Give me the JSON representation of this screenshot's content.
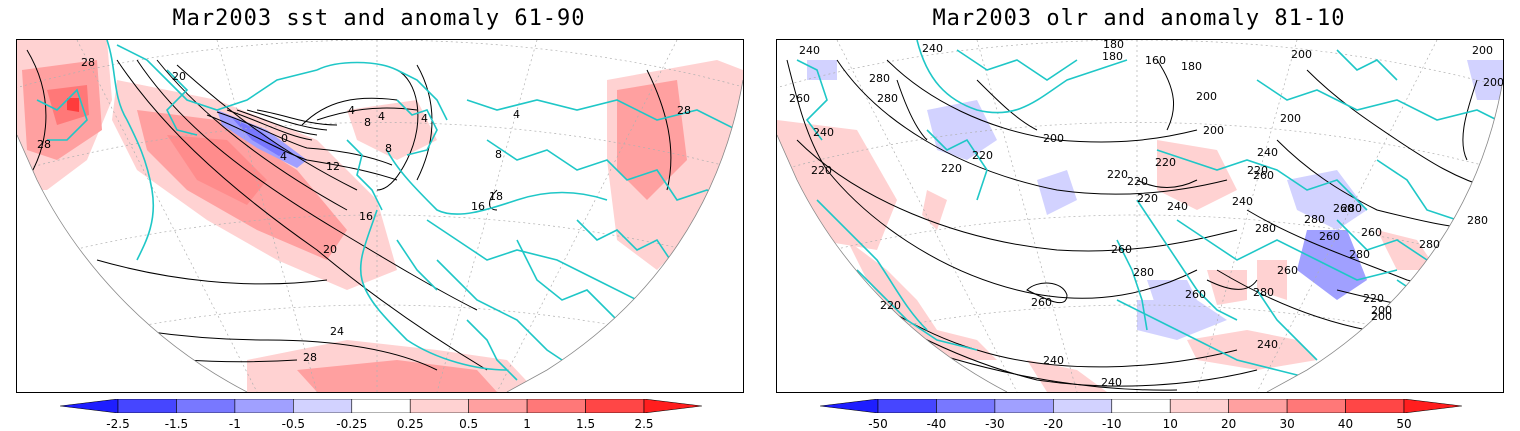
{
  "panels": [
    {
      "title": "Mar2003 sst and anomaly 61-90",
      "variable": "sst",
      "contour_labels": [
        "28",
        "20",
        "28",
        "0",
        "4",
        "4",
        "4",
        "4",
        "8",
        "8",
        "12",
        "16",
        "20",
        "24",
        "28",
        "4",
        "8",
        "16",
        "18",
        "28"
      ],
      "colorbar": {
        "labels": [
          "-2.5",
          "-1.5",
          "-1",
          "-0.5",
          "-0.25",
          "0.25",
          "0.5",
          "1",
          "1.5",
          "2.5"
        ],
        "colors": [
          "#1e1eff",
          "#4646ff",
          "#7878ff",
          "#a0a0ff",
          "#d2d2ff",
          "#ffffff",
          "#ffd2d2",
          "#ffa0a0",
          "#ff7878",
          "#ff4646",
          "#ff1e1e"
        ]
      }
    },
    {
      "title": "Mar2003 olr and anomaly 81-10",
      "variable": "olr",
      "contour_labels": [
        "240",
        "240",
        "180",
        "180",
        "160",
        "180",
        "200",
        "200",
        "200",
        "280",
        "260",
        "280",
        "240",
        "200",
        "220",
        "220",
        "220",
        "200",
        "220",
        "220",
        "220",
        "200",
        "240",
        "220",
        "240",
        "260",
        "220",
        "240",
        "260",
        "280",
        "280",
        "260",
        "280",
        "260",
        "280",
        "260",
        "200",
        "280",
        "280",
        "200",
        "260",
        "280",
        "260",
        "220",
        "200",
        "260",
        "280",
        "240",
        "220",
        "240",
        "240"
      ],
      "colorbar": {
        "labels": [
          "-50",
          "-40",
          "-30",
          "-20",
          "-10",
          "10",
          "20",
          "30",
          "40",
          "50"
        ],
        "colors": [
          "#1e1eff",
          "#4646ff",
          "#7878ff",
          "#a0a0ff",
          "#d2d2ff",
          "#ffffff",
          "#ffd2d2",
          "#ffa0a0",
          "#ff7878",
          "#ff4646",
          "#ff1e1e"
        ]
      }
    }
  ],
  "colors": {
    "coastline": "#1fc7c7",
    "contour": "#000000",
    "grid": "#b0b0b0"
  }
}
